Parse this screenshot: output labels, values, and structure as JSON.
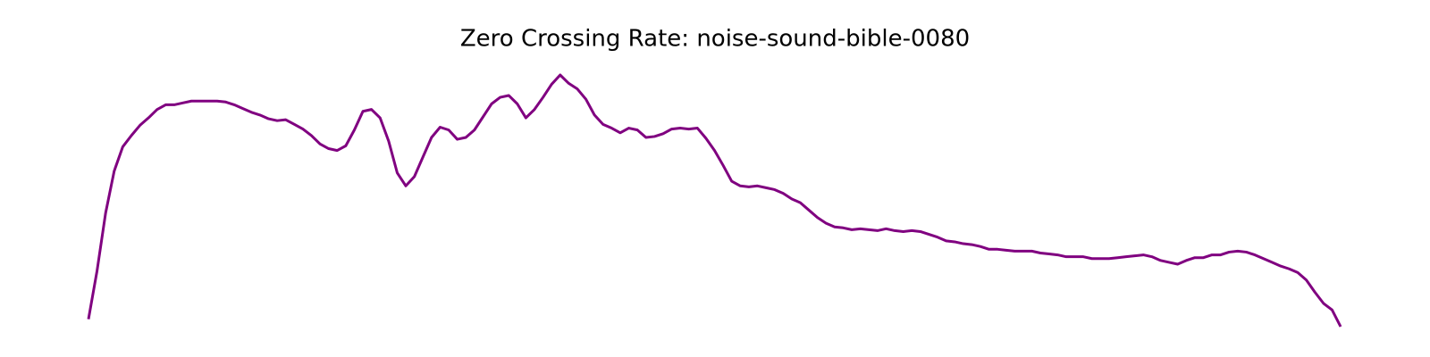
{
  "chart_data": {
    "type": "line",
    "title": "Zero Crossing Rate: noise-sound-bible-0080",
    "color": "#800080",
    "values": [
      0.018,
      0.07,
      0.132,
      0.177,
      0.203,
      0.215,
      0.226,
      0.234,
      0.243,
      0.248,
      0.248,
      0.25,
      0.252,
      0.252,
      0.252,
      0.252,
      0.251,
      0.248,
      0.244,
      0.24,
      0.237,
      0.233,
      0.231,
      0.232,
      0.227,
      0.222,
      0.215,
      0.206,
      0.201,
      0.199,
      0.204,
      0.221,
      0.241,
      0.243,
      0.234,
      0.209,
      0.175,
      0.161,
      0.171,
      0.192,
      0.213,
      0.224,
      0.221,
      0.211,
      0.213,
      0.221,
      0.235,
      0.249,
      0.256,
      0.258,
      0.249,
      0.234,
      0.243,
      0.256,
      0.27,
      0.28,
      0.271,
      0.265,
      0.254,
      0.237,
      0.227,
      0.223,
      0.218,
      0.223,
      0.221,
      0.213,
      0.214,
      0.217,
      0.222,
      0.223,
      0.222,
      0.223,
      0.212,
      0.199,
      0.183,
      0.166,
      0.161,
      0.16,
      0.161,
      0.159,
      0.157,
      0.153,
      0.147,
      0.143,
      0.135,
      0.127,
      0.121,
      0.117,
      0.116,
      0.114,
      0.115,
      0.114,
      0.113,
      0.115,
      0.113,
      0.112,
      0.113,
      0.112,
      0.109,
      0.106,
      0.102,
      0.101,
      0.099,
      0.098,
      0.096,
      0.093,
      0.093,
      0.092,
      0.091,
      0.091,
      0.091,
      0.089,
      0.088,
      0.087,
      0.085,
      0.085,
      0.085,
      0.083,
      0.083,
      0.083,
      0.084,
      0.085,
      0.086,
      0.087,
      0.085,
      0.081,
      0.079,
      0.077,
      0.081,
      0.084,
      0.084,
      0.087,
      0.087,
      0.09,
      0.091,
      0.09,
      0.087,
      0.083,
      0.079,
      0.075,
      0.072,
      0.068,
      0.06,
      0.047,
      0.035,
      0.028,
      0.01
    ]
  }
}
